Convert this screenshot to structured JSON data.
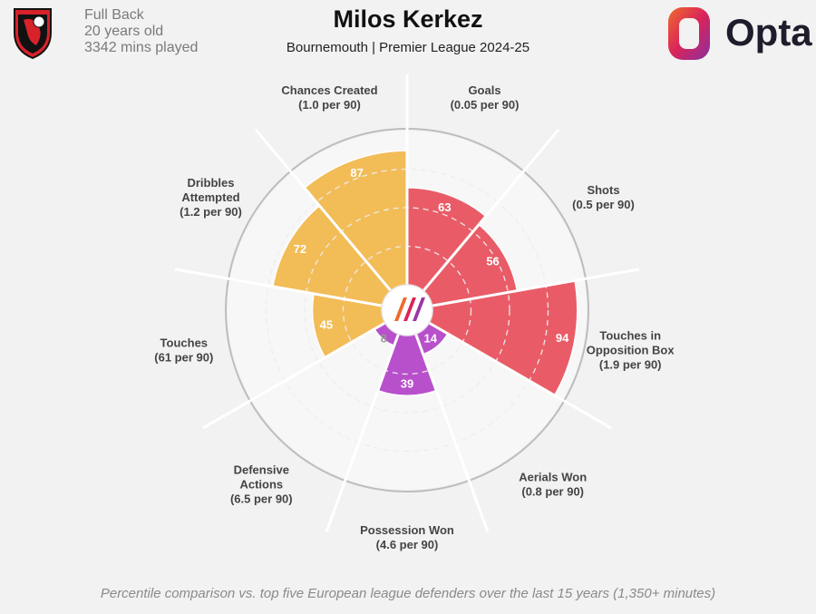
{
  "header": {
    "position": "Full Back",
    "age": "20 years old",
    "minutes": "3342 mins played",
    "title": "Milos Kerkez",
    "subtitle": "Bournemouth | Premier League 2024-25",
    "brand": "Opta",
    "club_crest_text": "AFC BOURNEMOUTH"
  },
  "footnote": "Percentile comparison vs. top five European league defenders over the last 15 years (1,350+ minutes)",
  "colors": {
    "attacking": "#e8515d",
    "possession": "#f2b84b",
    "defending": "#b444c8",
    "background": "#f2f2f2"
  },
  "chart_data": {
    "type": "polar-area",
    "ylim": [
      0,
      100
    ],
    "categories": [
      {
        "line1": "Goals",
        "line2": null,
        "rate": "(0.05 per 90)",
        "value": 63,
        "group": "attacking"
      },
      {
        "line1": "Shots",
        "line2": null,
        "rate": "(0.5 per 90)",
        "value": 56,
        "group": "attacking"
      },
      {
        "line1": "Touches in",
        "line2": "Opposition Box",
        "rate": "(1.9 per 90)",
        "value": 94,
        "group": "attacking"
      },
      {
        "line1": "Aerials Won",
        "line2": null,
        "rate": "(0.8 per 90)",
        "value": 14,
        "group": "defending"
      },
      {
        "line1": "Possession Won",
        "line2": null,
        "rate": "(4.6 per 90)",
        "value": 39,
        "group": "defending"
      },
      {
        "line1": "Defensive",
        "line2": "Actions",
        "rate": "(6.5 per 90)",
        "value": 8,
        "group": "defending"
      },
      {
        "line1": "Touches",
        "line2": null,
        "rate": "(61 per 90)",
        "value": 45,
        "group": "possession"
      },
      {
        "line1": "Dribbles",
        "line2": "Attempted",
        "rate": "(1.2 per 90)",
        "value": 72,
        "group": "possession"
      },
      {
        "line1": "Chances Created",
        "line2": null,
        "rate": "(1.0 per 90)",
        "value": 87,
        "group": "possession"
      }
    ]
  }
}
